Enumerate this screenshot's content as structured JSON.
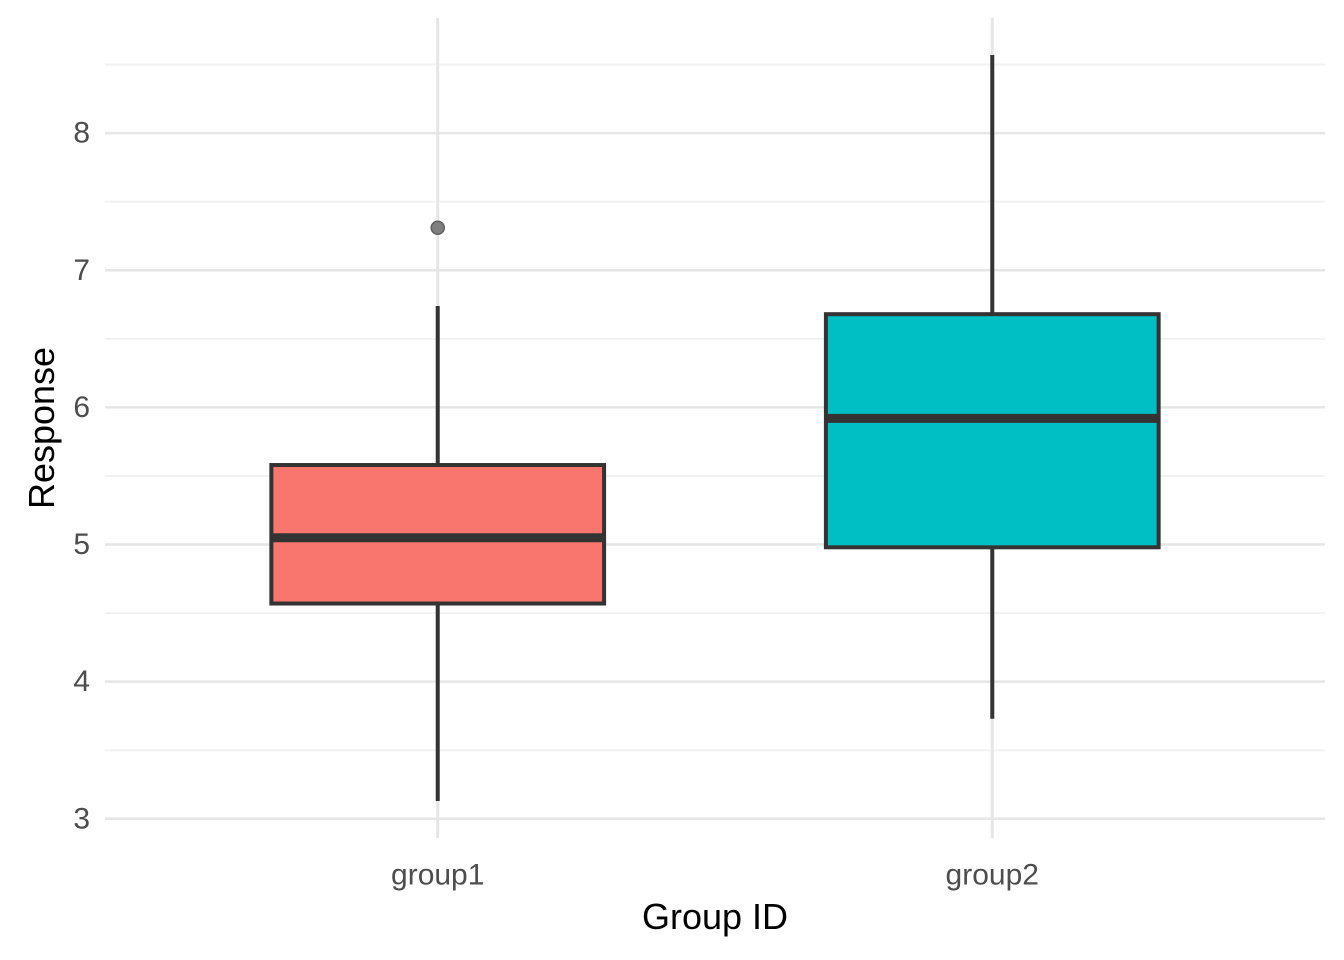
{
  "chart_data": {
    "type": "boxplot",
    "title": "",
    "xlabel": "Group ID",
    "ylabel": "Response",
    "categories": [
      "group1",
      "group2"
    ],
    "series": [
      {
        "name": "group1",
        "fill": "#F8766D",
        "whisker_low": 3.13,
        "q1": 4.57,
        "median": 5.05,
        "q3": 5.58,
        "whisker_high": 6.74,
        "outliers": [
          7.31
        ]
      },
      {
        "name": "group2",
        "fill": "#00BFC4",
        "whisker_low": 3.73,
        "q1": 4.98,
        "median": 5.92,
        "q3": 6.68,
        "whisker_high": 8.57,
        "outliers": []
      }
    ],
    "y_ticks": [
      3,
      4,
      5,
      6,
      7,
      8
    ],
    "y_minor_ticks": [
      3.5,
      4.5,
      5.5,
      6.5,
      7.5,
      8.5
    ],
    "ylim": [
      2.86,
      8.84
    ],
    "xlim": [
      0.4,
      2.6
    ],
    "box_width": 0.6,
    "grid": "on",
    "legend": "none",
    "colors": {
      "background": "#FFFFFF",
      "grid_major": "#E6E6E6",
      "grid_minor": "#F2F2F2",
      "box_border": "#333333",
      "median_line": "#333333",
      "whisker": "#333333",
      "outlier_fill": "#7F7F7F",
      "outlier_stroke": "#5E5E5E",
      "tick_label": "#4D4D4D",
      "axis_title": "#000000"
    }
  }
}
